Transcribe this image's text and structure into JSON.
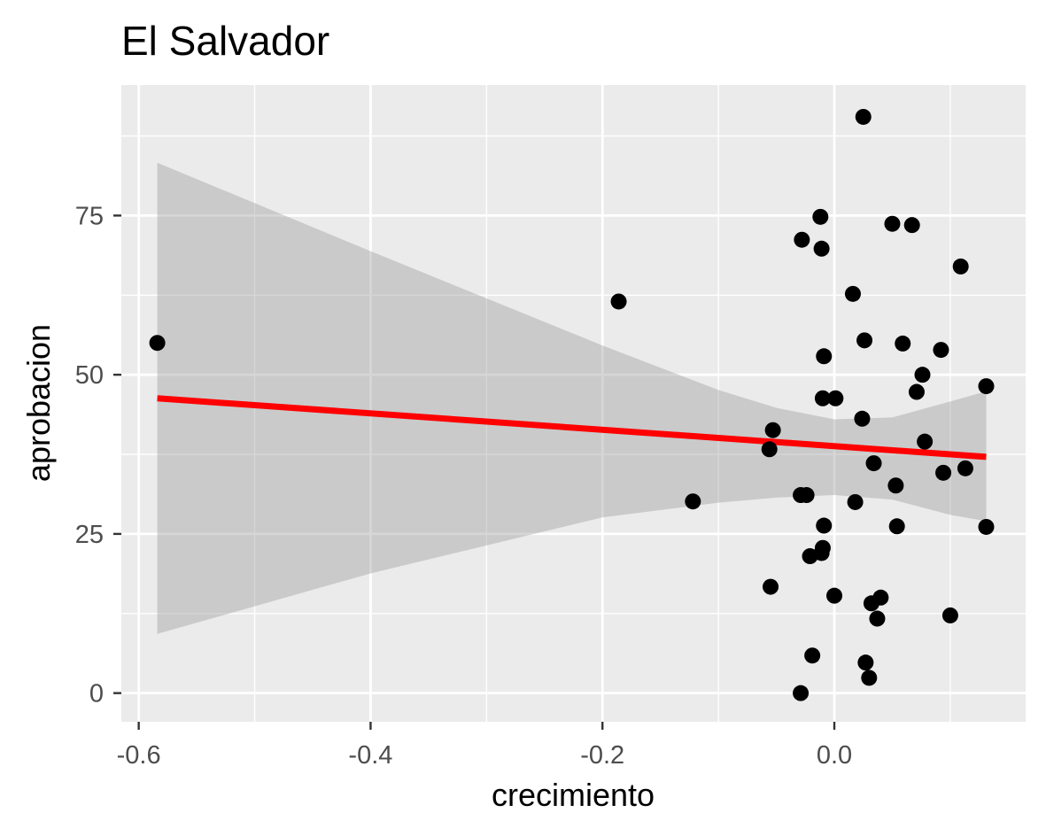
{
  "chart_data": {
    "type": "scatter",
    "title": "El Salvador",
    "xlabel": "crecimiento",
    "ylabel": "aprobacion",
    "xlim": [
      -0.615,
      0.165
    ],
    "ylim": [
      -4.5,
      95.5
    ],
    "x_ticks": [
      {
        "value": -0.6,
        "label": "-0.6"
      },
      {
        "value": -0.4,
        "label": "-0.4"
      },
      {
        "value": -0.2,
        "label": "-0.2"
      },
      {
        "value": 0.0,
        "label": "0.0"
      }
    ],
    "y_ticks": [
      {
        "value": 0,
        "label": "0"
      },
      {
        "value": 25,
        "label": "25"
      },
      {
        "value": 50,
        "label": "50"
      },
      {
        "value": 75,
        "label": "75"
      }
    ],
    "grid": true,
    "legend": "none",
    "colors": {
      "panel_background": "#ebebeb",
      "grid_line": "#ffffff",
      "point": "#000000",
      "fit_line": "#ff0000",
      "confidence_band": "#999999"
    },
    "points": [
      {
        "x": 0.025,
        "y": 90.5
      },
      {
        "x": -0.012,
        "y": 74.8
      },
      {
        "x": 0.05,
        "y": 73.7
      },
      {
        "x": 0.067,
        "y": 73.5
      },
      {
        "x": -0.028,
        "y": 71.2
      },
      {
        "x": -0.011,
        "y": 69.8
      },
      {
        "x": 0.109,
        "y": 67.0
      },
      {
        "x": 0.016,
        "y": 62.7
      },
      {
        "x": -0.186,
        "y": 61.5
      },
      {
        "x": -0.584,
        "y": 55.0
      },
      {
        "x": 0.026,
        "y": 55.4
      },
      {
        "x": 0.059,
        "y": 54.9
      },
      {
        "x": 0.092,
        "y": 53.9
      },
      {
        "x": -0.009,
        "y": 52.9
      },
      {
        "x": 0.076,
        "y": 50.0
      },
      {
        "x": 0.131,
        "y": 48.2
      },
      {
        "x": 0.071,
        "y": 47.3
      },
      {
        "x": -0.01,
        "y": 46.3
      },
      {
        "x": 0.001,
        "y": 46.3
      },
      {
        "x": 0.024,
        "y": 43.1
      },
      {
        "x": -0.053,
        "y": 41.3
      },
      {
        "x": 0.078,
        "y": 39.5
      },
      {
        "x": -0.056,
        "y": 38.3
      },
      {
        "x": 0.034,
        "y": 36.1
      },
      {
        "x": 0.113,
        "y": 35.3
      },
      {
        "x": 0.094,
        "y": 34.6
      },
      {
        "x": 0.053,
        "y": 32.6
      },
      {
        "x": -0.029,
        "y": 31.1
      },
      {
        "x": -0.024,
        "y": 31.1
      },
      {
        "x": -0.122,
        "y": 30.1
      },
      {
        "x": 0.018,
        "y": 30.0
      },
      {
        "x": 0.131,
        "y": 26.1
      },
      {
        "x": 0.054,
        "y": 26.2
      },
      {
        "x": -0.009,
        "y": 26.3
      },
      {
        "x": -0.01,
        "y": 22.8
      },
      {
        "x": -0.011,
        "y": 22.0
      },
      {
        "x": -0.021,
        "y": 21.5
      },
      {
        "x": -0.055,
        "y": 16.7
      },
      {
        "x": 0.0,
        "y": 15.3
      },
      {
        "x": 0.04,
        "y": 15.0
      },
      {
        "x": 0.032,
        "y": 14.1
      },
      {
        "x": 0.1,
        "y": 12.2
      },
      {
        "x": 0.037,
        "y": 11.7
      },
      {
        "x": -0.019,
        "y": 5.9
      },
      {
        "x": 0.027,
        "y": 4.8
      },
      {
        "x": 0.03,
        "y": 2.4
      },
      {
        "x": -0.029,
        "y": 0.0
      }
    ],
    "fit_line": [
      {
        "x": -0.584,
        "y": 46.3
      },
      {
        "x": 0.131,
        "y": 37.1
      }
    ],
    "confidence_band": {
      "x": [
        -0.584,
        -0.4,
        -0.2,
        -0.1,
        -0.05,
        0.0,
        0.05,
        0.1,
        0.131
      ],
      "upper": [
        83.3,
        69.4,
        54.6,
        47.6,
        44.8,
        43.0,
        43.3,
        45.8,
        47.4
      ],
      "lower": [
        9.3,
        18.8,
        27.6,
        29.9,
        30.7,
        31.1,
        30.4,
        28.0,
        27.0
      ]
    }
  }
}
